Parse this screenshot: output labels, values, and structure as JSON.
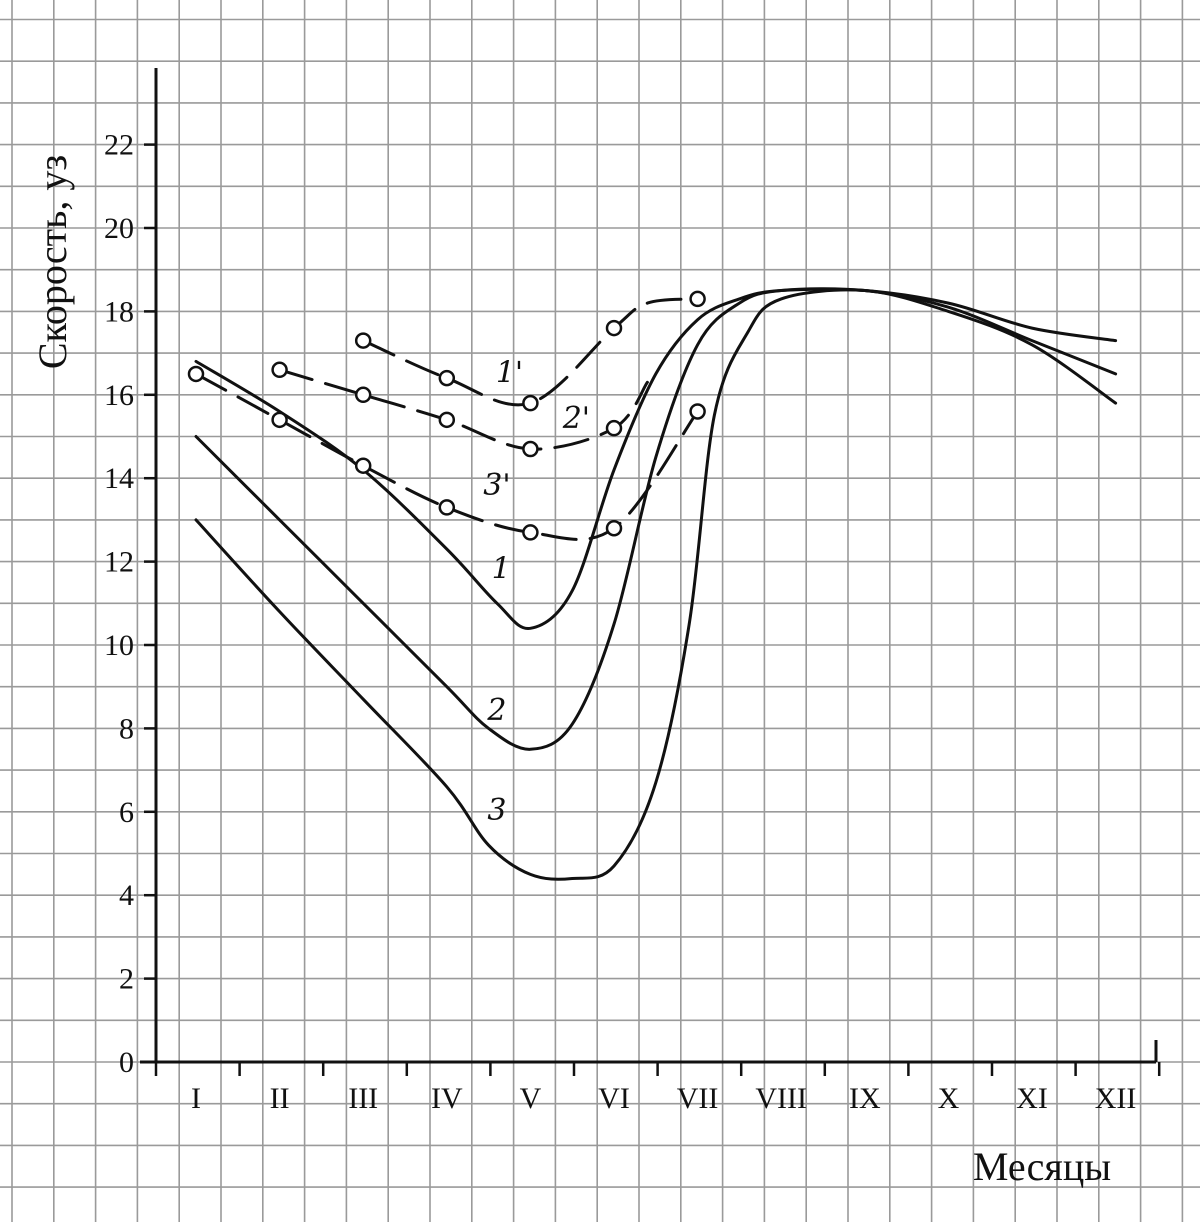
{
  "chart_data": {
    "type": "line",
    "title": "",
    "xlabel": "Месяцы",
    "ylabel": "Скорость, уз",
    "categories": [
      "I",
      "II",
      "III",
      "IV",
      "V",
      "VI",
      "VII",
      "VIII",
      "IX",
      "X",
      "XI",
      "XII"
    ],
    "ylim": [
      0,
      24
    ],
    "yticks": [
      0,
      2,
      4,
      6,
      8,
      10,
      12,
      14,
      16,
      18,
      20,
      22
    ],
    "grid": true,
    "legend": "none",
    "series": [
      {
        "name": "1",
        "style": "solid",
        "x": [
          1,
          2,
          3,
          4,
          4.6,
          5,
          5.5,
          6,
          6.5,
          7,
          7.5,
          8,
          9,
          10,
          11,
          12
        ],
        "y": [
          16.8,
          15.6,
          14.2,
          12.3,
          11.0,
          10.4,
          11.3,
          14.2,
          16.5,
          17.8,
          18.3,
          18.5,
          18.5,
          18.2,
          17.6,
          17.3
        ]
      },
      {
        "name": "2",
        "style": "solid",
        "x": [
          1,
          2,
          3,
          4,
          4.5,
          5,
          5.5,
          6,
          6.5,
          7,
          7.5,
          8,
          9,
          10,
          11,
          12
        ],
        "y": [
          15.0,
          13.0,
          11.0,
          9.0,
          8.0,
          7.5,
          8.1,
          10.5,
          14.5,
          17.2,
          18.2,
          18.5,
          18.5,
          18.1,
          17.3,
          16.5
        ]
      },
      {
        "name": "3",
        "style": "solid",
        "x": [
          1,
          2,
          3,
          4,
          4.5,
          5,
          5.5,
          6,
          6.5,
          6.9,
          7.2,
          7.6,
          8,
          9,
          10,
          11,
          12
        ],
        "y": [
          13.0,
          10.8,
          8.7,
          6.6,
          5.2,
          4.5,
          4.4,
          4.7,
          6.7,
          10.5,
          15.5,
          17.5,
          18.3,
          18.5,
          18.0,
          17.2,
          15.8
        ]
      },
      {
        "name": "1'",
        "style": "dashed",
        "x": [
          3,
          4,
          5,
          6,
          6.4,
          7
        ],
        "y": [
          17.3,
          16.4,
          15.8,
          17.6,
          18.2,
          18.3
        ],
        "markers": [
          3,
          4,
          5,
          6,
          7
        ]
      },
      {
        "name": "2'",
        "style": "dashed",
        "x": [
          2,
          3,
          4,
          5,
          6,
          6.4
        ],
        "y": [
          16.6,
          16.0,
          15.4,
          14.7,
          15.2,
          16.3
        ],
        "markers": [
          2,
          3,
          4,
          5,
          6
        ]
      },
      {
        "name": "3'",
        "style": "dashed",
        "x": [
          1,
          2,
          3,
          4,
          5,
          6,
          7
        ],
        "y": [
          16.5,
          15.4,
          14.3,
          13.3,
          12.7,
          12.8,
          15.6
        ],
        "markers": [
          1,
          2,
          3,
          4,
          5,
          6,
          7
        ]
      }
    ],
    "annotations": [
      {
        "text": "1",
        "x": 4.65,
        "y": 11.6
      },
      {
        "text": "2",
        "x": 4.6,
        "y": 8.2
      },
      {
        "text": "3",
        "x": 4.6,
        "y": 5.8
      },
      {
        "text": "1'",
        "x": 4.75,
        "y": 16.3
      },
      {
        "text": "2'",
        "x": 5.55,
        "y": 15.2
      },
      {
        "text": "3'",
        "x": 4.6,
        "y": 13.6
      }
    ]
  }
}
